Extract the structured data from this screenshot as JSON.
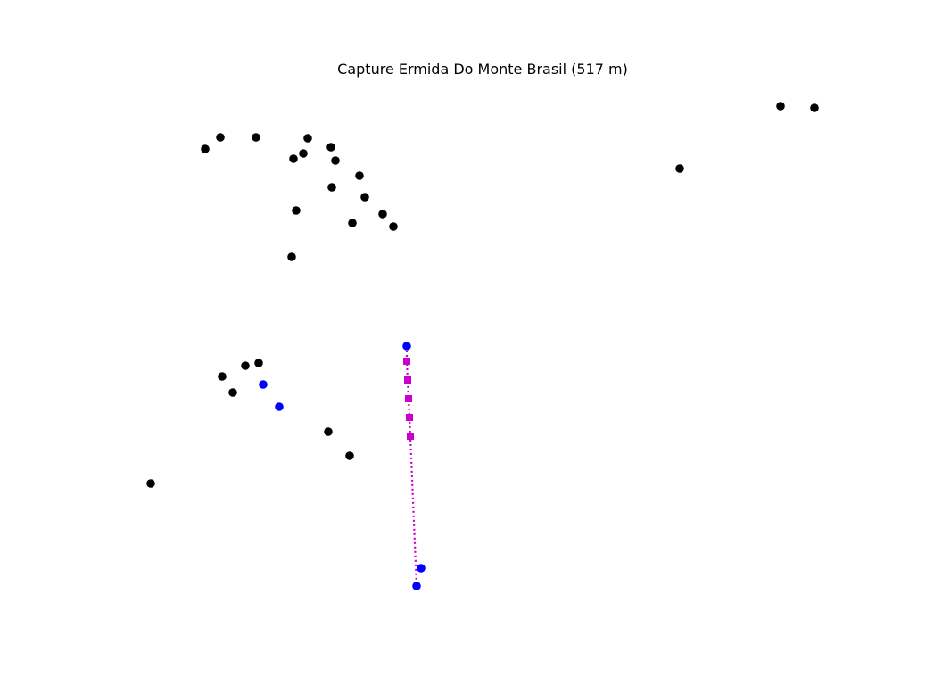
{
  "chart_data": {
    "type": "scatter",
    "title": "Capture Ermida Do Monte Brasil (517 m)",
    "xlabel": "",
    "ylabel": "",
    "axes_visible": false,
    "grid": false,
    "colors": {
      "black_points": "#000000",
      "blue_points": "#0000ff",
      "route": "#cc00cc"
    },
    "series": [
      {
        "marker": "circle",
        "color": "#000000",
        "points": [
          [
            230,
            167
          ],
          [
            247,
            154
          ],
          [
            287,
            154
          ],
          [
            345,
            155
          ],
          [
            371,
            165
          ],
          [
            340,
            172
          ],
          [
            329,
            178
          ],
          [
            376,
            180
          ],
          [
            403,
            197
          ],
          [
            372,
            210
          ],
          [
            409,
            221
          ],
          [
            332,
            236
          ],
          [
            429,
            240
          ],
          [
            395,
            250
          ],
          [
            441,
            254
          ],
          [
            327,
            288
          ],
          [
            875,
            119
          ],
          [
            913,
            121
          ],
          [
            762,
            189
          ],
          [
            249,
            422
          ],
          [
            275,
            410
          ],
          [
            290,
            407
          ],
          [
            261,
            440
          ],
          [
            368,
            484
          ],
          [
            392,
            511
          ],
          [
            169,
            542
          ]
        ]
      },
      {
        "marker": "circle",
        "color": "#0000ff",
        "points": [
          [
            456,
            388
          ],
          [
            295,
            431
          ],
          [
            313,
            456
          ],
          [
            472,
            637
          ],
          [
            467,
            657
          ]
        ]
      },
      {
        "marker": "square",
        "color": "#cc00cc",
        "line": "dotted",
        "points": [
          [
            456,
            388
          ],
          [
            456,
            405
          ],
          [
            457,
            426
          ],
          [
            458,
            447
          ],
          [
            459,
            468
          ],
          [
            460,
            489
          ],
          [
            467,
            657
          ]
        ],
        "marker_points": [
          [
            456,
            405
          ],
          [
            457,
            426
          ],
          [
            458,
            447
          ],
          [
            459,
            468
          ],
          [
            460,
            489
          ]
        ]
      }
    ]
  }
}
